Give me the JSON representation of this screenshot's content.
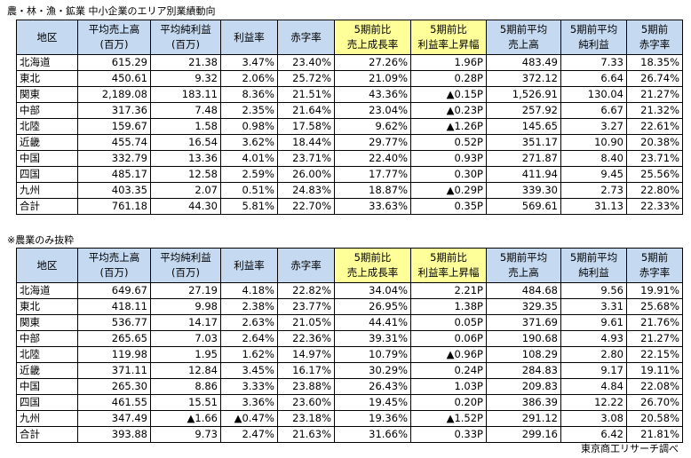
{
  "title": "農・林・漁・鉱業 中小企業のエリア別業績動向",
  "note": "※農業のみ抜粋",
  "source": "東京商工リサーチ調べ",
  "tables": [
    {
      "header": [
        [
          "地区"
        ],
        [
          "平均売上高",
          "(百万)"
        ],
        [
          "平均純利益",
          "(百万)"
        ],
        [
          "利益率"
        ],
        [
          "赤字率"
        ],
        [
          "5期前比",
          "売上成長率"
        ],
        [
          "5期前比",
          "利益率上昇幅"
        ],
        [
          "5期前平均",
          "売上高"
        ],
        [
          "5期前平均",
          "純利益"
        ],
        [
          "5期前",
          "赤字率"
        ]
      ],
      "rows": [
        [
          "北海道",
          "615.29",
          "21.38",
          "3.47%",
          "23.40%",
          "27.26%",
          "1.96P",
          "483.49",
          "7.33",
          "18.35%"
        ],
        [
          "東北",
          "450.61",
          "9.32",
          "2.06%",
          "25.72%",
          "21.09%",
          "0.28P",
          "372.12",
          "6.64",
          "26.74%"
        ],
        [
          "関東",
          "2,189.08",
          "183.11",
          "8.36%",
          "21.51%",
          "43.36%",
          "▲0.15P",
          "1,526.91",
          "130.04",
          "21.27%"
        ],
        [
          "中部",
          "317.36",
          "7.48",
          "2.35%",
          "21.64%",
          "23.04%",
          "▲0.23P",
          "257.92",
          "6.67",
          "21.32%"
        ],
        [
          "北陸",
          "159.67",
          "1.58",
          "0.98%",
          "17.58%",
          "9.62%",
          "▲1.26P",
          "145.65",
          "3.27",
          "22.61%"
        ],
        [
          "近畿",
          "455.74",
          "16.54",
          "3.62%",
          "18.44%",
          "29.77%",
          "0.52P",
          "351.17",
          "10.90",
          "20.38%"
        ],
        [
          "中国",
          "332.79",
          "13.36",
          "4.01%",
          "23.71%",
          "22.40%",
          "0.93P",
          "271.87",
          "8.40",
          "23.71%"
        ],
        [
          "四国",
          "485.17",
          "12.58",
          "2.59%",
          "26.00%",
          "17.77%",
          "0.30P",
          "411.94",
          "9.45",
          "25.56%"
        ],
        [
          "九州",
          "403.35",
          "2.07",
          "0.51%",
          "24.83%",
          "18.87%",
          "▲0.29P",
          "339.30",
          "2.73",
          "22.80%"
        ],
        [
          "合計",
          "761.18",
          "44.30",
          "5.81%",
          "22.70%",
          "33.63%",
          "0.35P",
          "569.61",
          "31.13",
          "22.33%"
        ]
      ]
    },
    {
      "header": [
        [
          "地区"
        ],
        [
          "平均売上高",
          "(百万)"
        ],
        [
          "平均純利益",
          "(百万)"
        ],
        [
          "利益率"
        ],
        [
          "赤字率"
        ],
        [
          "5期前比",
          "売上成長率"
        ],
        [
          "5期前比",
          "利益率上昇幅"
        ],
        [
          "5期前平均",
          "売上高"
        ],
        [
          "5期前平均",
          "純利益"
        ],
        [
          "5期前",
          "赤字率"
        ]
      ],
      "rows": [
        [
          "北海道",
          "649.67",
          "27.19",
          "4.18%",
          "22.82%",
          "34.04%",
          "2.21P",
          "484.68",
          "9.56",
          "19.91%"
        ],
        [
          "東北",
          "418.11",
          "9.98",
          "2.38%",
          "23.77%",
          "26.95%",
          "1.38P",
          "329.35",
          "3.31",
          "25.68%"
        ],
        [
          "関東",
          "536.77",
          "14.17",
          "2.63%",
          "21.05%",
          "44.41%",
          "0.05P",
          "371.69",
          "9.61",
          "21.76%"
        ],
        [
          "中部",
          "265.65",
          "7.03",
          "2.64%",
          "22.36%",
          "39.31%",
          "0.06P",
          "190.68",
          "4.93",
          "21.27%"
        ],
        [
          "北陸",
          "119.98",
          "1.95",
          "1.62%",
          "14.97%",
          "10.79%",
          "▲0.96P",
          "108.29",
          "2.80",
          "22.15%"
        ],
        [
          "近畿",
          "371.11",
          "12.84",
          "3.45%",
          "16.17%",
          "30.29%",
          "0.24P",
          "284.83",
          "9.17",
          "19.11%"
        ],
        [
          "中国",
          "265.30",
          "8.86",
          "3.33%",
          "23.88%",
          "26.43%",
          "1.03P",
          "209.83",
          "4.84",
          "22.08%"
        ],
        [
          "四国",
          "461.55",
          "15.51",
          "3.36%",
          "23.60%",
          "19.45%",
          "0.20P",
          "386.39",
          "12.22",
          "26.70%"
        ],
        [
          "九州",
          "347.49",
          "▲1.66",
          "▲0.47%",
          "23.18%",
          "19.36%",
          "▲1.52P",
          "291.12",
          "3.08",
          "20.58%"
        ],
        [
          "合計",
          "393.88",
          "9.73",
          "2.47%",
          "21.63%",
          "31.66%",
          "0.33P",
          "299.16",
          "6.42",
          "21.81%"
        ]
      ]
    }
  ]
}
